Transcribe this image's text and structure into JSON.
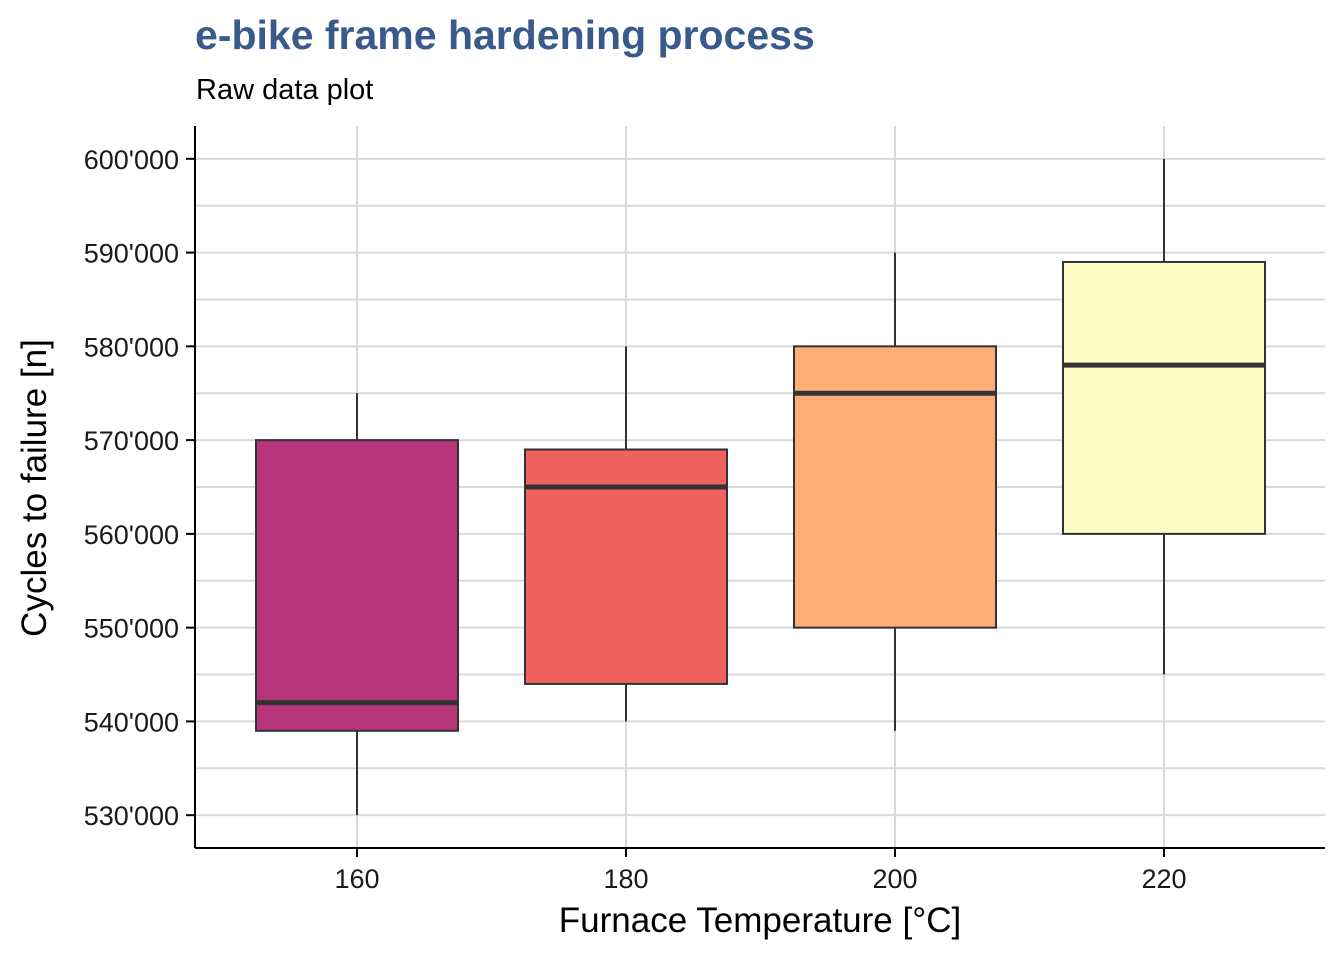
{
  "chart_data": {
    "type": "box",
    "title": "e-bike frame hardening process",
    "subtitle": "Raw data plot",
    "xlabel": "Furnace Temperature [°C]",
    "ylabel": "Cycles to failure [n]",
    "categories": [
      "160",
      "180",
      "200",
      "220"
    ],
    "boxes": [
      {
        "category": "160",
        "min": 530000,
        "q1": 539000,
        "median": 542000,
        "q3": 570000,
        "max": 575000,
        "color": "#b6357a"
      },
      {
        "category": "180",
        "min": 540000,
        "q1": 544000,
        "median": 565000,
        "q3": 569000,
        "max": 580000,
        "color": "#f0625f"
      },
      {
        "category": "200",
        "min": 539000,
        "q1": 550000,
        "median": 575000,
        "q3": 580000,
        "max": 590000,
        "color": "#fdae76"
      },
      {
        "category": "220",
        "min": 545000,
        "q1": 560000,
        "median": 578000,
        "q3": 589000,
        "max": 600000,
        "color": "#fdfcc2"
      }
    ],
    "y_ticks": [
      {
        "value": 530000,
        "label": "530'000"
      },
      {
        "value": 540000,
        "label": "540'000"
      },
      {
        "value": 550000,
        "label": "550'000"
      },
      {
        "value": 560000,
        "label": "560'000"
      },
      {
        "value": 570000,
        "label": "570'000"
      },
      {
        "value": 580000,
        "label": "580'000"
      },
      {
        "value": 590000,
        "label": "590'000"
      },
      {
        "value": 600000,
        "label": "600'000"
      }
    ],
    "ylim": [
      526500,
      603500
    ],
    "grid": true,
    "colors": {
      "title": "#3b5a8c",
      "grid": "#d9d9d9",
      "outline": "#333333"
    }
  }
}
